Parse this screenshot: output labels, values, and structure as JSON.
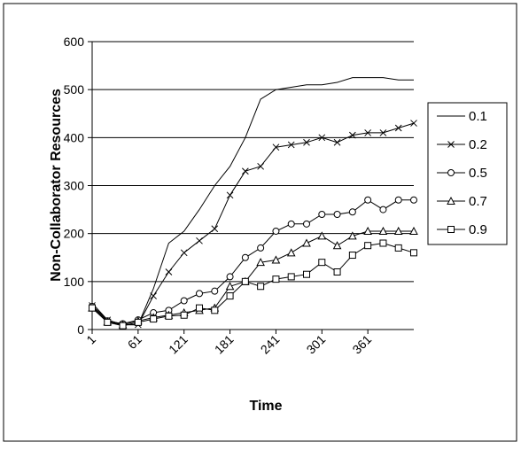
{
  "chart_data": {
    "type": "line",
    "title": "",
    "xlabel": "Time",
    "ylabel": "Non-Collaborator Resources",
    "ylim": [
      0,
      600
    ],
    "xlim": [
      1,
      421
    ],
    "y_ticks": [
      0,
      100,
      200,
      300,
      400,
      500,
      600
    ],
    "x_ticks": [
      "1",
      "61",
      "121",
      "181",
      "241",
      "301",
      "361"
    ],
    "grid": "horizontal",
    "legend_position": "right",
    "x": [
      1,
      21,
      41,
      61,
      81,
      101,
      121,
      141,
      161,
      181,
      201,
      221,
      241,
      261,
      281,
      301,
      321,
      341,
      361,
      381,
      401,
      421
    ],
    "series": [
      {
        "name": "0.1",
        "marker": "none",
        "values": [
          55,
          20,
          10,
          10,
          85,
          180,
          205,
          250,
          300,
          340,
          400,
          480,
          500,
          505,
          510,
          510,
          515,
          525,
          525,
          525,
          520,
          520
        ]
      },
      {
        "name": "0.2",
        "marker": "cross",
        "values": [
          50,
          20,
          10,
          10,
          70,
          120,
          160,
          185,
          210,
          280,
          330,
          340,
          380,
          385,
          390,
          400,
          390,
          405,
          410,
          410,
          420,
          430
        ]
      },
      {
        "name": "0.5",
        "marker": "circle",
        "values": [
          48,
          18,
          12,
          20,
          35,
          40,
          60,
          75,
          80,
          110,
          150,
          170,
          205,
          220,
          220,
          240,
          240,
          245,
          270,
          250,
          270,
          270
        ]
      },
      {
        "name": "0.7",
        "marker": "triangle",
        "values": [
          45,
          16,
          10,
          18,
          25,
          30,
          35,
          40,
          45,
          90,
          100,
          140,
          145,
          160,
          180,
          195,
          175,
          195,
          205,
          205,
          205,
          205
        ]
      },
      {
        "name": "0.9",
        "marker": "square",
        "values": [
          45,
          15,
          8,
          15,
          22,
          28,
          30,
          45,
          40,
          70,
          100,
          90,
          105,
          110,
          115,
          140,
          120,
          155,
          175,
          180,
          170,
          160
        ]
      }
    ]
  }
}
